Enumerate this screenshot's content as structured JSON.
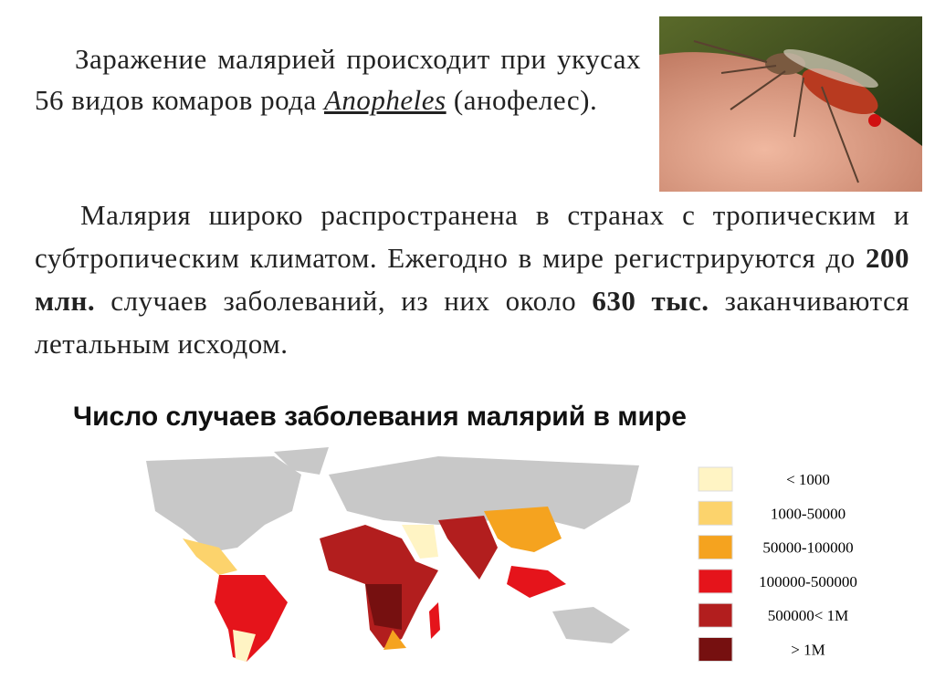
{
  "paragraph1": {
    "text": "Заражение малярией происходит при укусах 56 видов комаров рода ",
    "genus": "Anopheles",
    "suffix": " (анофелес)."
  },
  "paragraph2": {
    "part1": "Малярия широко распространена в странах с тропическим и субтропическим климатом. Ежегодно в мире регистрируются до ",
    "bold1": "200 млн.",
    "part2": " случаев заболеваний, из них около ",
    "bold2": "630 тыс.",
    "part3": " заканчиваются летальным исходом."
  },
  "map": {
    "title": "Число случаев заболевания малярий в мире",
    "legend": [
      {
        "label": "< 1000",
        "color": "#fff4c4"
      },
      {
        "label": "1000-50000",
        "color": "#fcd36c"
      },
      {
        "label": "50000-100000",
        "color": "#f5a31f"
      },
      {
        "label": "100000-500000",
        "color": "#e5141b"
      },
      {
        "label": "500000< 1M",
        "color": "#b21e1e"
      },
      {
        "label": "> 1M",
        "color": "#761010"
      }
    ]
  }
}
